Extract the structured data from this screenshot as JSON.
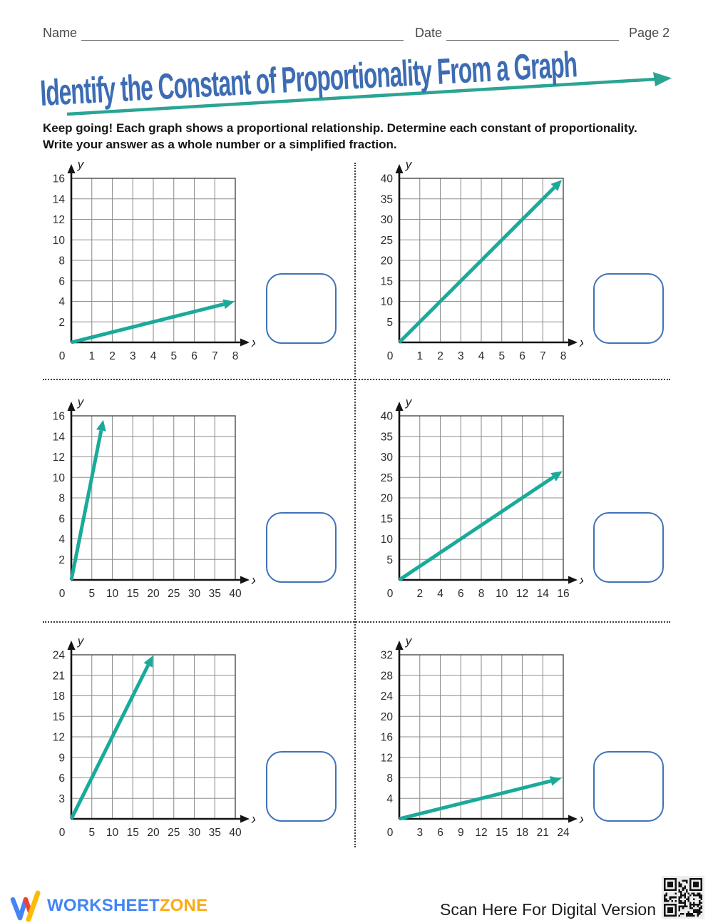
{
  "header": {
    "name_label": "Name",
    "date_label": "Date",
    "page_label": "Page 2"
  },
  "title": "Identify the Constant of Proportionality From a Graph",
  "instructions": {
    "line1": "Keep going! Each graph shows a proportional relationship. Determine each constant of proportionality.",
    "line2": "Write your answer as a whole number or a simplified fraction."
  },
  "colors": {
    "accent_teal": "#1AAA9A",
    "title_blue": "#3C6CB4",
    "answer_box_blue": "#3F72B8",
    "grid_gray": "#8f8f8f",
    "axis_black": "#141414",
    "tick_text": "#2b2b2b"
  },
  "chart_data": [
    {
      "type": "line",
      "xlabel": "x",
      "ylabel": "y",
      "xlim": [
        0,
        8
      ],
      "ylim": [
        0,
        16
      ],
      "xstep": 1,
      "ystep": 2,
      "x_ticks": [
        0,
        1,
        2,
        3,
        4,
        5,
        6,
        7,
        8
      ],
      "y_ticks": [
        2,
        4,
        6,
        8,
        10,
        12,
        14,
        16
      ],
      "grid": true,
      "line": {
        "from": [
          0,
          0
        ],
        "to": [
          7.95,
          3.98
        ]
      },
      "slope": "1/2"
    },
    {
      "type": "line",
      "xlabel": "x",
      "ylabel": "y",
      "xlim": [
        0,
        8
      ],
      "ylim": [
        0,
        40
      ],
      "xstep": 1,
      "ystep": 5,
      "x_ticks": [
        0,
        1,
        2,
        3,
        4,
        5,
        6,
        7,
        8
      ],
      "y_ticks": [
        5,
        10,
        15,
        20,
        25,
        30,
        35,
        40
      ],
      "grid": true,
      "line": {
        "from": [
          0,
          0
        ],
        "to": [
          7.93,
          39.6
        ]
      },
      "slope": "5"
    },
    {
      "type": "line",
      "xlabel": "x",
      "ylabel": "y",
      "xlim": [
        0,
        40
      ],
      "ylim": [
        0,
        16
      ],
      "xstep": 5,
      "ystep": 2,
      "x_ticks": [
        0,
        5,
        10,
        15,
        20,
        25,
        30,
        35,
        40
      ],
      "y_ticks": [
        2,
        4,
        6,
        8,
        10,
        12,
        14,
        16
      ],
      "grid": true,
      "line": {
        "from": [
          0,
          0
        ],
        "to": [
          7.8,
          15.6
        ]
      },
      "slope": "2"
    },
    {
      "type": "line",
      "xlabel": "x",
      "ylabel": "y",
      "xlim": [
        0,
        16
      ],
      "ylim": [
        0,
        40
      ],
      "xstep": 2,
      "ystep": 5,
      "x_ticks": [
        0,
        2,
        4,
        6,
        8,
        10,
        12,
        14,
        16
      ],
      "y_ticks": [
        5,
        10,
        15,
        20,
        25,
        30,
        35,
        40
      ],
      "grid": true,
      "line": {
        "from": [
          0,
          0
        ],
        "to": [
          15.9,
          26.5
        ]
      },
      "slope": "5/3"
    },
    {
      "type": "line",
      "xlabel": "x",
      "ylabel": "y",
      "xlim": [
        0,
        40
      ],
      "ylim": [
        0,
        24
      ],
      "xstep": 5,
      "ystep": 3,
      "x_ticks": [
        0,
        5,
        10,
        15,
        20,
        25,
        30,
        35,
        40
      ],
      "y_ticks": [
        3,
        6,
        9,
        12,
        15,
        18,
        21,
        24
      ],
      "grid": true,
      "line": {
        "from": [
          0,
          0
        ],
        "to": [
          19.9,
          23.88
        ]
      },
      "slope": "6/5"
    },
    {
      "type": "line",
      "xlabel": "x",
      "ylabel": "y",
      "xlim": [
        0,
        24
      ],
      "ylim": [
        0,
        32
      ],
      "xstep": 3,
      "ystep": 4,
      "x_ticks": [
        0,
        3,
        6,
        9,
        12,
        15,
        18,
        21,
        24
      ],
      "y_ticks": [
        4,
        8,
        12,
        16,
        20,
        24,
        28,
        32
      ],
      "grid": true,
      "line": {
        "from": [
          0,
          0
        ],
        "to": [
          23.7,
          7.9
        ]
      },
      "slope": "1/3"
    }
  ],
  "footer": {
    "brand_worksheet": "WORKSHEET",
    "brand_zone": "ZONE",
    "scan_text": "Scan Here For Digital Version"
  }
}
